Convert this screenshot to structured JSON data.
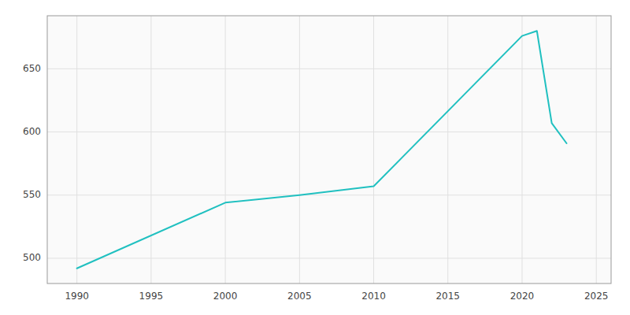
{
  "chart_data": {
    "type": "line",
    "x": [
      1990,
      2000,
      2005,
      2010,
      2020,
      2021,
      2022,
      2023
    ],
    "values": [
      492,
      544,
      550,
      557,
      676,
      680,
      607,
      591
    ],
    "color": "#20c0c0",
    "xlim": [
      1988,
      2026
    ],
    "ylim": [
      480,
      692
    ],
    "xticks": [
      1990,
      1995,
      2000,
      2005,
      2010,
      2015,
      2020,
      2025
    ],
    "yticks": [
      500,
      550,
      600,
      650
    ],
    "grid": true
  }
}
